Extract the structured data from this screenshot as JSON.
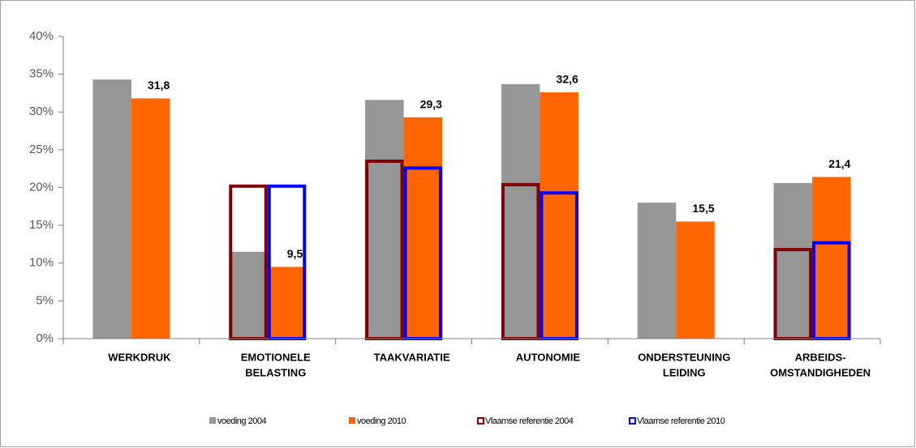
{
  "chart_data": {
    "type": "bar",
    "categories": [
      [
        "WERKDRUK"
      ],
      [
        "EMOTIONELE",
        "BELASTING"
      ],
      [
        "TAAKVARIATIE"
      ],
      [
        "AUTONOMIE"
      ],
      [
        "ONDERSTEUNING",
        "LEIDING"
      ],
      [
        "ARBEIDS-",
        "OMSTANDIGHEDEN"
      ]
    ],
    "series": [
      {
        "name": "voeding 2004",
        "color": "#969696",
        "outline": false,
        "values": [
          34.3,
          11.5,
          31.6,
          33.7,
          18.0,
          20.6
        ]
      },
      {
        "name": "voeding 2010",
        "color": "#ff6600",
        "outline": false,
        "values": [
          31.8,
          9.5,
          29.3,
          32.6,
          15.5,
          21.4
        ],
        "value_labels": [
          "31,8",
          "9,5",
          "29,3",
          "32,6",
          "15,5",
          "21,4"
        ]
      },
      {
        "name": "Vlaamse referentie 2004",
        "color": "#800000",
        "outline": true,
        "values": [
          null,
          20.4,
          23.7,
          20.6,
          null,
          12.0
        ]
      },
      {
        "name": "Vlaamse referentie 2010",
        "color": "#0000ff",
        "outline": true,
        "values": [
          null,
          20.4,
          22.8,
          19.5,
          null,
          12.9
        ]
      }
    ],
    "ylim": [
      0,
      40
    ],
    "yticks": [
      {
        "value": 0,
        "label": "0%"
      },
      {
        "value": 5,
        "label": "5%"
      },
      {
        "value": 10,
        "label": "10%"
      },
      {
        "value": 15,
        "label": "15%"
      },
      {
        "value": 20,
        "label": "20%"
      },
      {
        "value": 25,
        "label": "25%"
      },
      {
        "value": 30,
        "label": "30%"
      },
      {
        "value": 35,
        "label": "35%"
      },
      {
        "value": 40,
        "label": "40%"
      }
    ],
    "grid": false,
    "legend": "bottom"
  }
}
